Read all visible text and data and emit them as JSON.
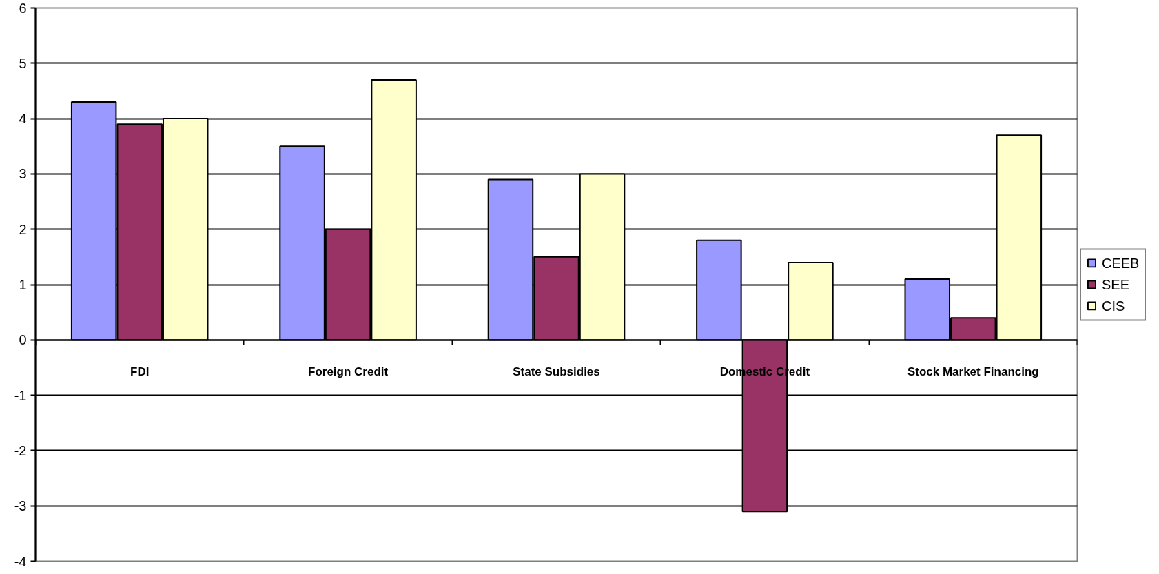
{
  "chart_data": {
    "type": "bar",
    "categories": [
      "FDI",
      "Foreign Credit",
      "State Subsidies",
      "Domestic Credit",
      "Stock Market Financing"
    ],
    "series": [
      {
        "name": "CEEB",
        "color": "#9999ff",
        "values": [
          4.3,
          3.5,
          2.9,
          1.8,
          1.1
        ]
      },
      {
        "name": "SEE",
        "color": "#993366",
        "values": [
          3.9,
          2.0,
          1.5,
          -3.1,
          0.4
        ]
      },
      {
        "name": "CIS",
        "color": "#ffffcc",
        "values": [
          4.0,
          4.7,
          3.0,
          1.4,
          3.7
        ]
      }
    ],
    "ylim": [
      -4,
      6
    ],
    "yticks": [
      -4,
      -3,
      -2,
      -1,
      0,
      1,
      2,
      3,
      4,
      5,
      6
    ],
    "grid": "y",
    "legend": "right"
  }
}
